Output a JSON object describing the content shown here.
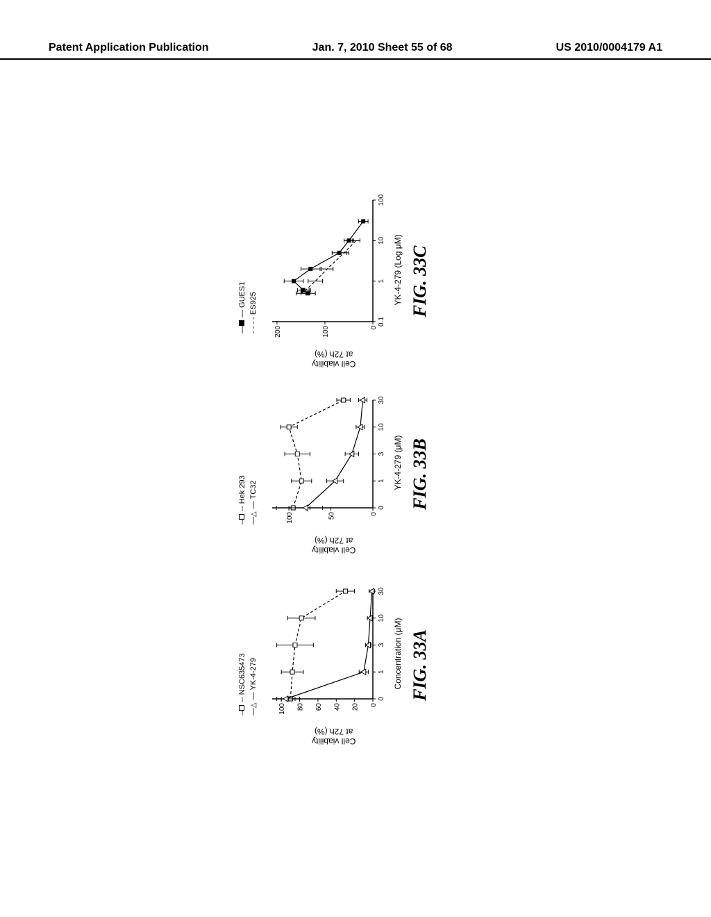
{
  "header": {
    "left": "Patent Application Publication",
    "middle": "Jan. 7, 2010  Sheet 55 of 68",
    "right": "US 2010/0004179 A1"
  },
  "panelA": {
    "type": "line",
    "legend": [
      {
        "label": "NSC635473",
        "marker": "open-square",
        "dash": "dashed"
      },
      {
        "label": "YK-4-279",
        "marker": "open-triangle",
        "dash": "solid"
      }
    ],
    "ylabel": "Cell viability\nat 72h (%)",
    "xlabel": "Concentration (μM)",
    "fig": "FIG. 33A",
    "xticks": [
      0,
      1,
      3,
      10,
      30
    ],
    "yticks": [
      0,
      20,
      40,
      60,
      80,
      100
    ],
    "ylim": [
      0,
      110
    ],
    "series": {
      "NSC635473": {
        "x": [
          0,
          1,
          3,
          10,
          30
        ],
        "y": [
          90,
          88,
          85,
          78,
          30
        ],
        "err": [
          10,
          12,
          20,
          15,
          10
        ],
        "marker": "open-square",
        "dash": "4,3"
      },
      "YK-4-279": {
        "x": [
          0,
          1,
          3,
          10,
          30
        ],
        "y": [
          95,
          10,
          5,
          3,
          1
        ],
        "err": [
          10,
          5,
          3,
          3,
          3
        ],
        "marker": "open-triangle",
        "dash": "0"
      }
    },
    "colors": {
      "line": "#000000",
      "bg": "#ffffff"
    }
  },
  "panelB": {
    "type": "line",
    "legend": [
      {
        "label": "Hek 293",
        "marker": "open-square",
        "dash": "dashed"
      },
      {
        "label": "TC32",
        "marker": "open-triangle",
        "dash": "solid"
      }
    ],
    "ylabel": "Cell viability\nat 72h (%)",
    "xlabel": "YK-4-279 (μM)",
    "fig": "FIG. 33B",
    "xticks": [
      0,
      1,
      3,
      10,
      30
    ],
    "yticks": [
      0,
      50,
      100
    ],
    "ylim": [
      0,
      120
    ],
    "series": {
      "Hek293": {
        "x": [
          0,
          1,
          3,
          10,
          30
        ],
        "y": [
          95,
          85,
          90,
          100,
          35
        ],
        "err": [
          20,
          12,
          15,
          10,
          8
        ],
        "marker": "open-square",
        "dash": "4,3"
      },
      "TC32": {
        "x": [
          0,
          1,
          3,
          10,
          30
        ],
        "y": [
          80,
          45,
          25,
          15,
          12
        ],
        "err": [
          20,
          10,
          8,
          5,
          5
        ],
        "marker": "open-triangle",
        "dash": "0"
      }
    },
    "colors": {
      "line": "#000000",
      "bg": "#ffffff"
    }
  },
  "panelC": {
    "type": "line",
    "legend": [
      {
        "label": "GUES1",
        "marker": "filled-square",
        "dash": "solid"
      },
      {
        "label": "ES925",
        "marker": "none",
        "dash": "dashed"
      }
    ],
    "ylabel": "Cell viability\nat 72h (%)",
    "xlabel": "YK-4-279 (Log μM)",
    "fig": "FIG. 33C",
    "xticks": [
      0.1,
      1,
      10,
      100
    ],
    "yticks": [
      0,
      100,
      200
    ],
    "ylim": [
      0,
      210
    ],
    "xscale": "log",
    "series": {
      "GUES1": {
        "x": [
          0.5,
          0.6,
          1,
          2,
          5,
          10,
          30
        ],
        "y": [
          135,
          145,
          165,
          130,
          70,
          50,
          20
        ],
        "err": [
          15,
          12,
          20,
          20,
          15,
          10,
          10
        ],
        "marker": "filled-square",
        "dash": "0"
      },
      "ES925": {
        "x": [
          0.5,
          0.6,
          1,
          2,
          5,
          10
        ],
        "y": [
          150,
          140,
          120,
          95,
          60,
          35
        ],
        "err": [
          10,
          10,
          15,
          12,
          10,
          8
        ],
        "marker": "none",
        "dash": "4,3"
      }
    },
    "colors": {
      "line": "#000000",
      "bg": "#ffffff"
    }
  }
}
